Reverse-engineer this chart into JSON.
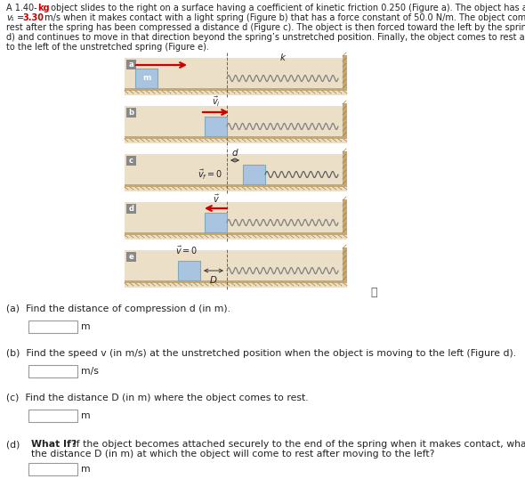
{
  "background_color": "#ffffff",
  "panel_bg": "#ecdfc8",
  "block_color": "#a8c4e0",
  "block_edge_color": "#7aabbf",
  "floor_color": "#c8a86e",
  "floor_hatch_color": "#a08040",
  "wall_color": "#c8a86e",
  "arrow_red": "#cc0000",
  "dashed_color": "#666666",
  "label_color": "#222222",
  "spring_color": "#808080",
  "panel_label_bg": "#888888",
  "panel_labels": [
    "a",
    "b",
    "c",
    "d",
    "e"
  ],
  "text_color": "#222222",
  "red_text_color": "#cc0000",
  "figsize": [
    5.9,
    5.47
  ],
  "dpi": 100,
  "title_lines": [
    "A 1.40-kg object slides to the right on a surface having a coefficient of kinetic friction 0.250 (Figure a). The object has a speed of",
    "v₁ = 3.30 m/s when it makes contact with a light spring (Figure b) that has a force constant of 50.0 N/m. The object comes to",
    "rest after the spring has been compressed a distance d (Figure c). The object is then forced toward the left by the spring (Figure",
    "d) and continues to move in that direction beyond the spring’s unstretched position. Finally, the object comes to rest a distance D",
    "to the left of the unstretched spring (Figure e)."
  ],
  "q_labels": [
    "(a)",
    "(b)",
    "(c)",
    "(d)"
  ],
  "q_texts": [
    "Find the distance of compression d (in m).",
    "Find the speed v (in m/s) at the unstretched position when the object is moving to the left (Figure d).",
    "Find the distance D (in m) where the object comes to rest.",
    "What If? If the object becomes attached securely to the end of the spring when it makes contact, what is the new value of\nthe distance D (in m) at which the object will come to rest after moving to the left?"
  ],
  "q_units": [
    "m",
    "m/s",
    "m",
    "m"
  ]
}
